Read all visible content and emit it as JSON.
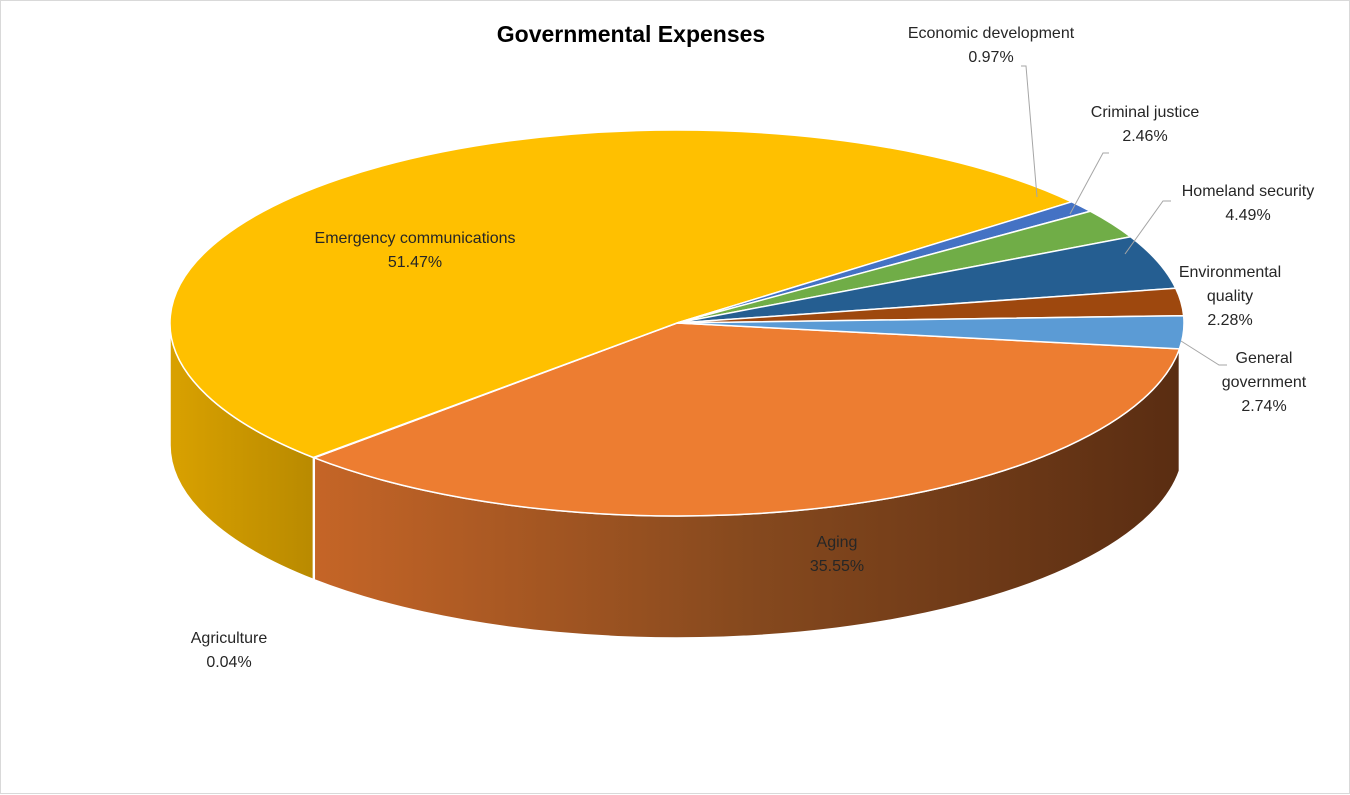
{
  "chart_data": {
    "type": "pie",
    "title": "Governmental Expenses",
    "slices": [
      {
        "label_lines": [
          "Aging"
        ],
        "percent_label": "35.55%",
        "value": 35.55,
        "color": "#ed7d31"
      },
      {
        "label_lines": [
          "Agriculture"
        ],
        "percent_label": "0.04%",
        "value": 0.04,
        "color": "#a5a5a5"
      },
      {
        "label_lines": [
          "Emergency communications"
        ],
        "percent_label": "51.47%",
        "value": 51.47,
        "color": "#ffc000"
      },
      {
        "label_lines": [
          "Economic development"
        ],
        "percent_label": "0.97%",
        "value": 0.97,
        "color": "#4472c4"
      },
      {
        "label_lines": [
          "Criminal justice"
        ],
        "percent_label": "2.46%",
        "value": 2.46,
        "color": "#70ad47"
      },
      {
        "label_lines": [
          "Homeland security"
        ],
        "percent_label": "4.49%",
        "value": 4.49,
        "color": "#255e91"
      },
      {
        "label_lines": [
          "Environmental",
          "quality"
        ],
        "percent_label": "2.28%",
        "value": 2.28,
        "color": "#9e480e"
      },
      {
        "label_lines": [
          "General",
          "government"
        ],
        "percent_label": "2.74%",
        "value": 2.74,
        "color": "#5b9bd5"
      }
    ]
  }
}
